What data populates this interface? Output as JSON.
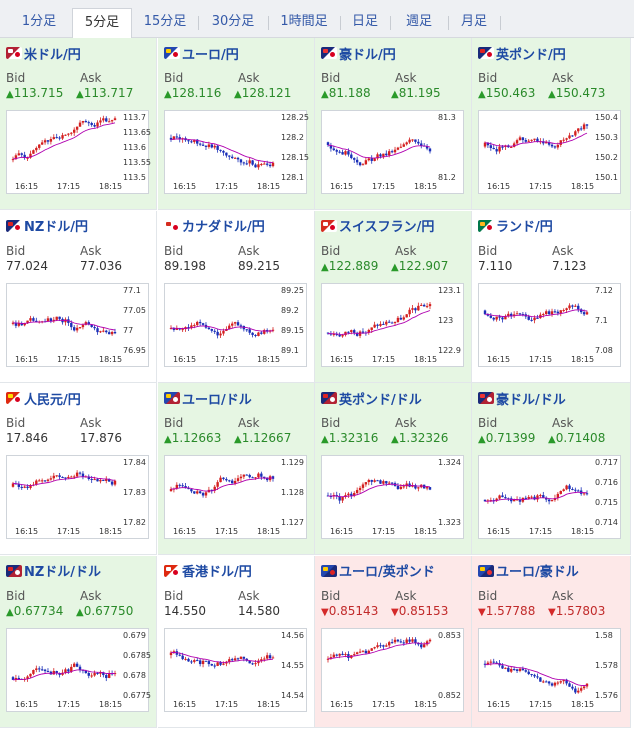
{
  "tabs": [
    {
      "label": "1分足",
      "active": false
    },
    {
      "label": "5分足",
      "active": true
    },
    {
      "label": "15分足",
      "active": false
    },
    {
      "label": "30分足",
      "active": false
    },
    {
      "label": "1時間足",
      "active": false
    },
    {
      "label": "日足",
      "active": false
    },
    {
      "label": "週足",
      "active": false
    },
    {
      "label": "月足",
      "active": false
    }
  ],
  "labels": {
    "bid": "Bid",
    "ask": "Ask"
  },
  "colors": {
    "up_bg": "#e6f6e3",
    "down_bg": "#fde8e8",
    "up_text": "#2a8a2a",
    "down_text": "#c12a2a",
    "link": "#1e4aa3",
    "candle_up": "#d42020",
    "candle_down": "#1a2fb8",
    "ma_line": "#b000b0"
  },
  "pairs": [
    {
      "name": "米ドル/円",
      "flag": "us-jp",
      "trend": "up",
      "bid": "113.715",
      "ask": "113.717",
      "yticks": [
        "113.7",
        "113.65",
        "113.6",
        "113.55",
        "113.5"
      ],
      "xticks": [
        "16:15",
        "17:15",
        "18:15"
      ]
    },
    {
      "name": "ユーロ/円",
      "flag": "eu-jp",
      "trend": "up",
      "bid": "128.116",
      "ask": "128.121",
      "yticks": [
        "128.25",
        "128.2",
        "128.15",
        "128.1"
      ],
      "xticks": [
        "16:15",
        "17:15",
        "18:15"
      ]
    },
    {
      "name": "豪ドル/円",
      "flag": "au-jp",
      "trend": "up",
      "bid": "81.188",
      "ask": "81.195",
      "yticks": [
        "81.3",
        "81.2"
      ],
      "xticks": [
        "16:15",
        "17:15",
        "18:15"
      ]
    },
    {
      "name": "英ポンド/円",
      "flag": "gb-jp",
      "trend": "up",
      "bid": "150.463",
      "ask": "150.473",
      "yticks": [
        "150.4",
        "150.3",
        "150.2",
        "150.1"
      ],
      "xticks": [
        "16:15",
        "17:15",
        "18:15"
      ]
    },
    {
      "name": "NZドル/円",
      "flag": "nz-jp",
      "trend": "flat",
      "bid": "77.024",
      "ask": "77.036",
      "yticks": [
        "77.1",
        "77.05",
        "77",
        "76.95"
      ],
      "xticks": [
        "16:15",
        "17:15",
        "18:15"
      ]
    },
    {
      "name": "カナダドル/円",
      "flag": "ca-jp",
      "trend": "flat",
      "bid": "89.198",
      "ask": "89.215",
      "yticks": [
        "89.25",
        "89.2",
        "89.15",
        "89.1"
      ],
      "xticks": [
        "16:15",
        "17:15",
        "18:15"
      ]
    },
    {
      "name": "スイスフラン/円",
      "flag": "ch-jp",
      "trend": "up",
      "bid": "122.889",
      "ask": "122.907",
      "yticks": [
        "123.1",
        "123",
        "122.9"
      ],
      "xticks": [
        "16:15",
        "17:15",
        "18:15"
      ]
    },
    {
      "name": "ランド/円",
      "flag": "za-jp",
      "trend": "flat",
      "bid": "7.110",
      "ask": "7.123",
      "yticks": [
        "7.12",
        "7.1",
        "7.08"
      ],
      "xticks": [
        "16:15",
        "17:15",
        "18:15"
      ]
    },
    {
      "name": "人民元/円",
      "flag": "cn-jp",
      "trend": "flat",
      "bid": "17.846",
      "ask": "17.876",
      "yticks": [
        "17.84",
        "17.83",
        "17.82"
      ],
      "xticks": [
        "16:15",
        "17:15",
        "18:15"
      ]
    },
    {
      "name": "ユーロ/ドル",
      "flag": "eu-us",
      "trend": "up",
      "bid": "1.12663",
      "ask": "1.12667",
      "yticks": [
        "1.129",
        "1.128",
        "1.127"
      ],
      "xticks": [
        "16:15",
        "17:15",
        "18:15"
      ]
    },
    {
      "name": "英ポンド/ドル",
      "flag": "gb-us",
      "trend": "up",
      "bid": "1.32316",
      "ask": "1.32326",
      "yticks": [
        "1.324",
        "1.323"
      ],
      "xticks": [
        "16:15",
        "17:15",
        "18:15"
      ]
    },
    {
      "name": "豪ドル/ドル",
      "flag": "au-us",
      "trend": "up",
      "bid": "0.71399",
      "ask": "0.71408",
      "yticks": [
        "0.717",
        "0.716",
        "0.715",
        "0.714"
      ],
      "xticks": [
        "16:15",
        "17:15",
        "18:15"
      ]
    },
    {
      "name": "NZドル/ドル",
      "flag": "nz-us",
      "trend": "up",
      "bid": "0.67734",
      "ask": "0.67750",
      "yticks": [
        "0.679",
        "0.6785",
        "0.678",
        "0.6775"
      ],
      "xticks": [
        "16:15",
        "17:15",
        "18:15"
      ]
    },
    {
      "name": "香港ドル/円",
      "flag": "hk-jp",
      "trend": "flat",
      "bid": "14.550",
      "ask": "14.580",
      "yticks": [
        "14.56",
        "14.55",
        "14.54"
      ],
      "xticks": [
        "16:15",
        "17:15",
        "18:15"
      ]
    },
    {
      "name": "ユーロ/英ポンド",
      "flag": "eu-gb",
      "trend": "down",
      "bid": "0.85143",
      "ask": "0.85153",
      "yticks": [
        "0.853",
        "0.852"
      ],
      "xticks": [
        "16:15",
        "17:15",
        "18:15"
      ]
    },
    {
      "name": "ユーロ/豪ドル",
      "flag": "eu-au",
      "trend": "down",
      "bid": "1.57788",
      "ask": "1.57803",
      "yticks": [
        "1.58",
        "1.578",
        "1.576"
      ],
      "xticks": [
        "16:15",
        "17:15",
        "18:15"
      ]
    }
  ]
}
